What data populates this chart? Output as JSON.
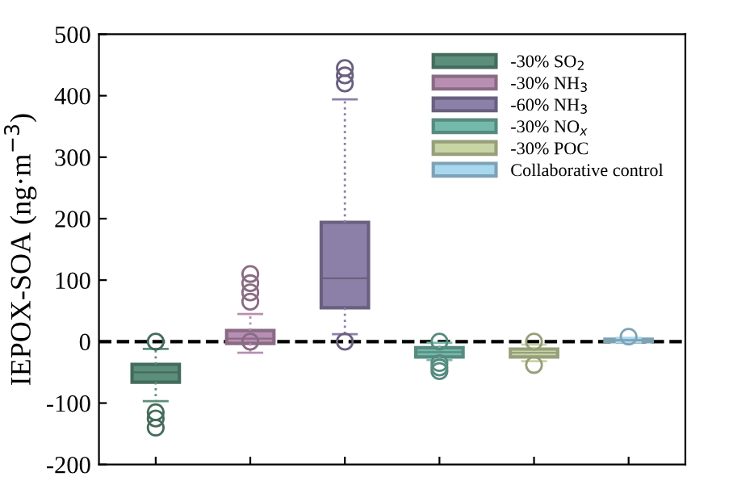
{
  "chart_data": {
    "type": "box",
    "ylabel": "IEPOX-SOA (ng·m$^{−3}$)",
    "categories": [
      null,
      null,
      null,
      null,
      null,
      null
    ],
    "ylim": [
      -200,
      500
    ],
    "yticks": [
      -200,
      -100,
      0,
      100,
      200,
      300,
      400,
      500
    ],
    "tick_labels": "y",
    "legend": "top right",
    "grid": false,
    "ref_lines": [
      {
        "axis": "y",
        "value": 0,
        "color": "#000000",
        "line_style": "dashed"
      }
    ],
    "series": [
      {
        "name": "-30% SO$_{2}$",
        "color": "#5b8f7b",
        "boxes": [
          {
            "low": -97,
            "q1": -66,
            "median": -50,
            "q3": -37,
            "high": -12,
            "outliers": [
              0,
              -115,
              -125,
              -140
            ]
          },
          null,
          null,
          null,
          null,
          null
        ]
      },
      {
        "name": "-30% NH$_{3}$",
        "color": "#b88fb2",
        "boxes": [
          null,
          {
            "low": -18,
            "q1": -3,
            "median": 5,
            "q3": 18,
            "high": 45,
            "outliers": [
              0,
              65,
              80,
              95,
              110
            ]
          },
          null,
          null,
          null,
          null
        ]
      },
      {
        "name": "-60% NH$_{3}$",
        "color": "#8c80a8",
        "boxes": [
          null,
          null,
          {
            "low": 12,
            "q1": 55,
            "median": 103,
            "q3": 194,
            "high": 394,
            "outliers": [
              0,
              420,
              433,
              445
            ]
          },
          null,
          null,
          null
        ]
      },
      {
        "name": "-30% NO$_{x}$",
        "color": "#74b9aa",
        "boxes": [
          null,
          null,
          null,
          {
            "low": -30,
            "q1": -25,
            "median": -17,
            "q3": -10,
            "high": -2,
            "outliers": [
              0,
              -35,
              -42,
              -48
            ]
          },
          null,
          null
        ]
      },
      {
        "name": "-30% POC",
        "color": "#c9d4a4",
        "boxes": [
          null,
          null,
          null,
          null,
          {
            "low": -32,
            "q1": -25,
            "median": -18,
            "q3": -12,
            "high": -5,
            "outliers": [
              0,
              -38
            ]
          },
          null
        ]
      },
      {
        "name": "Collaborative control",
        "color": "#a8d8f0",
        "boxes": [
          null,
          null,
          null,
          null,
          null,
          {
            "low": -1,
            "q1": 0,
            "median": 2,
            "q3": 4,
            "high": 6,
            "outliers": [
              8
            ]
          }
        ]
      }
    ]
  }
}
